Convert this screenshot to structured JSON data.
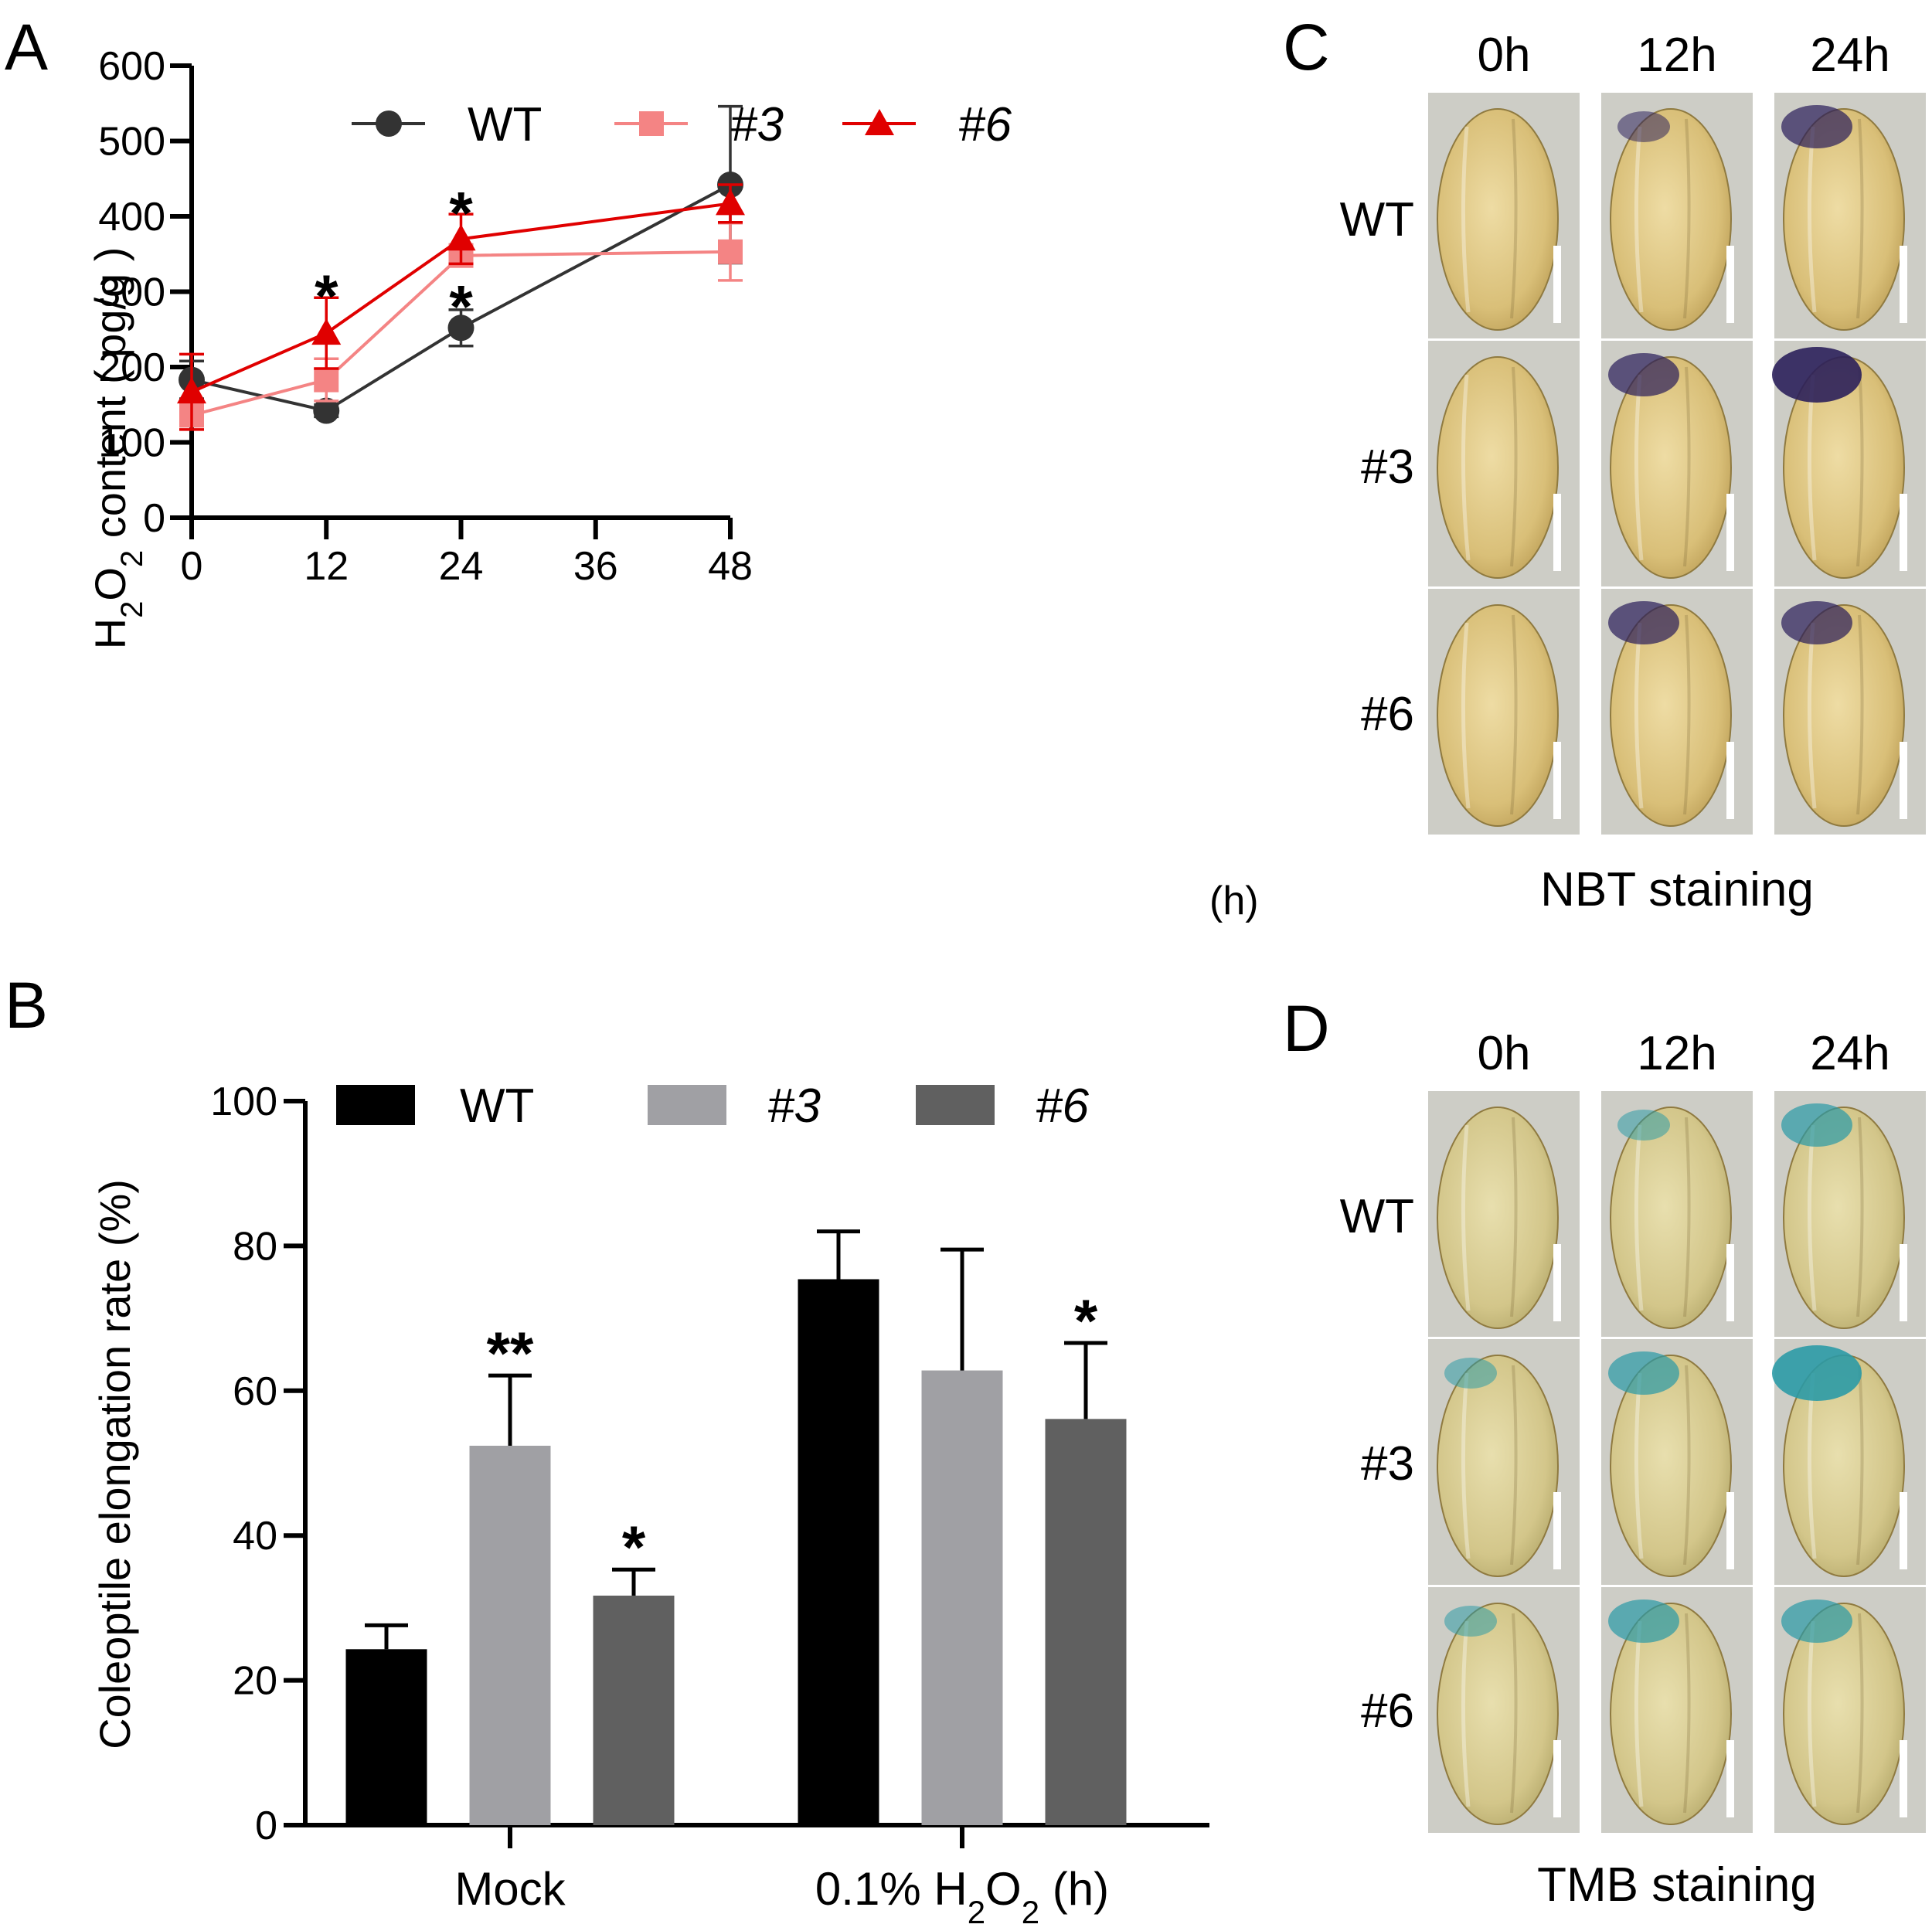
{
  "panels": {
    "A": "A",
    "B": "B",
    "C": "C",
    "D": "D"
  },
  "colors": {
    "wt_line": "#333333",
    "l3_line": "#f48484",
    "l6_line": "#e00000",
    "bar_wt": "#000000",
    "bar_3": "#a0a0a4",
    "bar_6": "#606060"
  },
  "chart_data": [
    {
      "id": "A",
      "type": "line",
      "x": [
        0,
        12,
        24,
        36,
        48
      ],
      "xticks": [
        "0",
        "12",
        "24",
        "36",
        "48"
      ],
      "xunit": "(h)",
      "ylim": [
        0,
        600
      ],
      "yticks": [
        "0",
        "100",
        "200",
        "300",
        "400",
        "500",
        "600"
      ],
      "ylabel_parts": [
        "H",
        "2",
        "O",
        "2",
        " content ( pg/g )"
      ],
      "series": [
        {
          "name": "WT",
          "italic": false,
          "marker": "circle",
          "x": [
            0,
            12,
            24,
            48
          ],
          "values": [
            183,
            142,
            252,
            442
          ],
          "err": [
            25,
            8,
            24,
            104
          ],
          "err_dir": "both"
        },
        {
          "name": "#3",
          "italic": true,
          "marker": "square",
          "x": [
            0,
            12,
            24,
            48
          ],
          "values": [
            136,
            183,
            348,
            353
          ],
          "err": [
            12,
            28,
            14,
            38
          ],
          "err_dir": "both"
        },
        {
          "name": "#6",
          "italic": true,
          "marker": "triangle",
          "x": [
            0,
            12,
            24,
            48
          ],
          "values": [
            167,
            245,
            370,
            417
          ],
          "err": [
            50,
            47,
            33,
            25
          ],
          "err_dir": "both"
        }
      ],
      "annotations": [
        {
          "text": "*",
          "x": 12,
          "y": 318
        },
        {
          "text": "*",
          "x": 24,
          "y": 428
        },
        {
          "text": "*",
          "x": 24,
          "y": 304
        }
      ]
    },
    {
      "id": "B",
      "type": "bar",
      "categories": [
        "Mock",
        "0.1% H2O2 (h)"
      ],
      "category_labels": [
        "Mock",
        "0.1% H",
        "2",
        "O",
        "2",
        " (h)"
      ],
      "ylim": [
        0,
        100
      ],
      "yticks": [
        "0",
        "20",
        "40",
        "60",
        "80",
        "100"
      ],
      "ylabel": "Coleoptile elongation rate (%)",
      "series": [
        {
          "name": "WT",
          "italic": false,
          "values": [
            24.3,
            75.4
          ],
          "err": [
            3.3,
            6.6
          ]
        },
        {
          "name": "#3",
          "italic": true,
          "values": [
            52.4,
            62.8
          ],
          "err": [
            9.7,
            16.7
          ]
        },
        {
          "name": "#6",
          "italic": true,
          "values": [
            31.7,
            56.1
          ],
          "err": [
            3.6,
            10.5
          ]
        }
      ],
      "annotations": [
        {
          "text": "**",
          "group": 0,
          "series": 1
        },
        {
          "text": "*",
          "group": 0,
          "series": 2
        },
        {
          "text": "*",
          "group": 1,
          "series": 2
        }
      ]
    }
  ],
  "staining": {
    "times": [
      "0h",
      "12h",
      "24h"
    ],
    "rows": [
      "WT",
      "#3",
      "#6"
    ],
    "nbt_caption": "NBT staining",
    "tmb_caption": "TMB staining"
  }
}
